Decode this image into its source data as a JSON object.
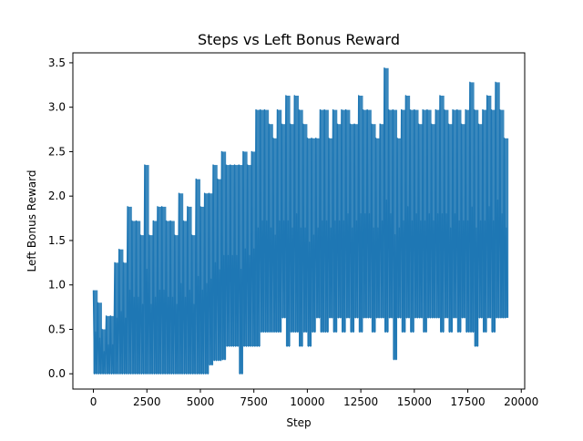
{
  "chart_data": {
    "type": "line",
    "title": "Steps vs Left Bonus Reward",
    "xlabel": "Step",
    "ylabel": "Left Bonus Reward",
    "xlim": [
      -960,
      20160
    ],
    "ylim": [
      -0.172,
      3.612
    ],
    "xticks": [
      0,
      2500,
      5000,
      7500,
      10000,
      12500,
      15000,
      17500,
      20000
    ],
    "xtick_labels": [
      "0",
      "2500",
      "5000",
      "7500",
      "10000",
      "12500",
      "15000",
      "17500",
      "20000"
    ],
    "yticks": [
      0.0,
      0.5,
      1.0,
      1.5,
      2.0,
      2.5,
      3.0,
      3.5
    ],
    "ytick_labels": [
      "0.0",
      "0.5",
      "1.0",
      "1.5",
      "2.0",
      "2.5",
      "3.0",
      "3.5"
    ],
    "grid": false,
    "legend": "none",
    "series": [
      {
        "color": "#1f77b4",
        "x": [
          0,
          200,
          400,
          600,
          800,
          1000,
          1200,
          1400,
          1600,
          1800,
          2000,
          2200,
          2400,
          2600,
          2800,
          3000,
          3200,
          3400,
          3600,
          3800,
          4000,
          4200,
          4400,
          4600,
          4800,
          5000,
          5200,
          5400,
          5600,
          5800,
          6000,
          6200,
          6400,
          6600,
          6800,
          7000,
          7200,
          7400,
          7600,
          7800,
          8000,
          8200,
          8400,
          8600,
          8800,
          9000,
          9200,
          9400,
          9600,
          9800,
          10000,
          10200,
          10400,
          10600,
          10800,
          11000,
          11200,
          11400,
          11600,
          11800,
          12000,
          12200,
          12400,
          12600,
          12800,
          13000,
          13200,
          13400,
          13600,
          13800,
          14000,
          14200,
          14400,
          14600,
          14800,
          15000,
          15200,
          15400,
          15600,
          15800,
          16000,
          16200,
          16400,
          16600,
          16800,
          17000,
          17200,
          17400,
          17600,
          17800,
          18000,
          18200,
          18400,
          18600,
          18800,
          19000,
          19200
        ],
        "upper": [
          0.94,
          0.8,
          0.5,
          0.65,
          0.65,
          1.25,
          1.4,
          1.25,
          1.88,
          1.72,
          1.72,
          1.56,
          2.35,
          1.56,
          1.72,
          1.88,
          1.88,
          1.72,
          1.72,
          1.56,
          2.03,
          1.72,
          1.88,
          1.56,
          2.19,
          1.88,
          2.03,
          2.03,
          2.35,
          2.19,
          2.5,
          2.35,
          2.35,
          2.35,
          2.35,
          2.5,
          2.35,
          2.5,
          2.97,
          2.97,
          2.97,
          2.81,
          2.65,
          2.97,
          2.81,
          3.13,
          2.81,
          3.13,
          2.97,
          2.81,
          2.65,
          2.65,
          2.65,
          2.97,
          2.97,
          2.65,
          2.97,
          2.81,
          2.97,
          2.97,
          2.81,
          2.81,
          3.13,
          2.97,
          2.97,
          2.81,
          2.65,
          2.81,
          3.44,
          2.97,
          2.97,
          2.65,
          2.97,
          3.13,
          2.97,
          2.97,
          2.81,
          2.97,
          2.97,
          2.81,
          2.97,
          3.13,
          2.97,
          2.81,
          2.97,
          2.97,
          2.81,
          2.97,
          3.28,
          2.97,
          2.81,
          2.97,
          3.13,
          2.97,
          3.28,
          2.97,
          2.65
        ],
        "lower": [
          0.0,
          0.0,
          0.0,
          0.0,
          0.0,
          0.0,
          0.0,
          0.0,
          0.0,
          0.0,
          0.0,
          0.0,
          0.0,
          0.0,
          0.0,
          0.0,
          0.0,
          0.0,
          0.0,
          0.0,
          0.0,
          0.0,
          0.0,
          0.0,
          0.0,
          0.0,
          0.0,
          0.1,
          0.15,
          0.15,
          0.16,
          0.31,
          0.31,
          0.31,
          0.0,
          0.31,
          0.31,
          0.31,
          0.31,
          0.47,
          0.47,
          0.47,
          0.47,
          0.47,
          0.63,
          0.31,
          0.47,
          0.47,
          0.31,
          0.47,
          0.31,
          0.47,
          0.63,
          0.47,
          0.47,
          0.63,
          0.47,
          0.63,
          0.47,
          0.63,
          0.47,
          0.63,
          0.47,
          0.63,
          0.63,
          0.47,
          0.63,
          0.63,
          0.47,
          0.63,
          0.16,
          0.63,
          0.47,
          0.63,
          0.47,
          0.63,
          0.63,
          0.47,
          0.63,
          0.63,
          0.63,
          0.47,
          0.63,
          0.47,
          0.63,
          0.47,
          0.63,
          0.47,
          0.47,
          0.31,
          0.63,
          0.47,
          0.63,
          0.47,
          0.63,
          0.63,
          0.63
        ]
      }
    ]
  }
}
